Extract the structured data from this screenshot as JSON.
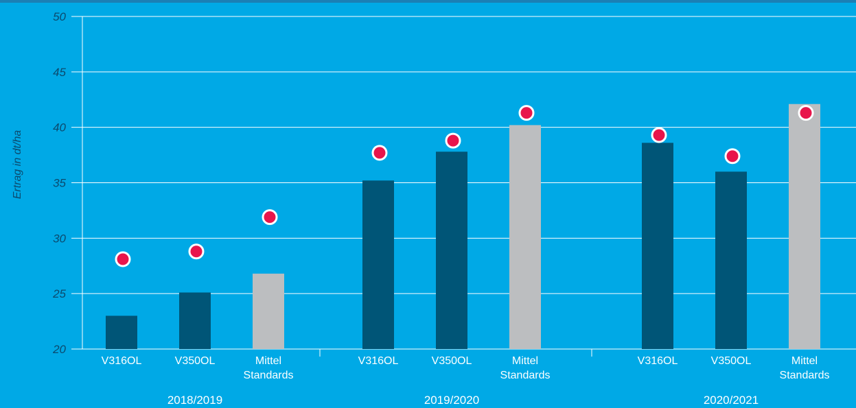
{
  "colors": {
    "background": "#00a9e6",
    "top_strip": "#1b7fb5",
    "bar_variety": "#005577",
    "bar_standard": "#bcbec0",
    "marker_fill": "#e8154b",
    "marker_stroke": "#ffffff",
    "grid": "#ffffff",
    "axis_text": "#0b4a6e",
    "category_text": "#ffffff"
  },
  "chart_data": {
    "type": "bar",
    "ylabel": "Ertrag in dt/ha",
    "ylim": [
      20,
      50
    ],
    "yticks": [
      "20",
      "25",
      "30",
      "35",
      "40",
      "45",
      "50"
    ],
    "grid": true,
    "groups": [
      {
        "label": "2018/2019",
        "bars": [
          {
            "category": [
              "V316OL"
            ],
            "value": 23.0,
            "marker": 28.1,
            "kind": "variety"
          },
          {
            "category": [
              "V350OL"
            ],
            "value": 25.1,
            "marker": 28.8,
            "kind": "variety"
          },
          {
            "category": [
              "Mittel",
              "Standards"
            ],
            "value": 26.8,
            "marker": 31.9,
            "kind": "standard"
          }
        ]
      },
      {
        "label": "2019/2020",
        "bars": [
          {
            "category": [
              "V316OL"
            ],
            "value": 35.2,
            "marker": 37.7,
            "kind": "variety"
          },
          {
            "category": [
              "V350OL"
            ],
            "value": 37.8,
            "marker": 38.8,
            "kind": "variety"
          },
          {
            "category": [
              "Mittel",
              "Standards"
            ],
            "value": 40.2,
            "marker": 41.3,
            "kind": "standard"
          }
        ]
      },
      {
        "label": "2020/2021",
        "bars": [
          {
            "category": [
              "V316OL"
            ],
            "value": 38.6,
            "marker": 39.3,
            "kind": "variety"
          },
          {
            "category": [
              "V350OL"
            ],
            "value": 36.0,
            "marker": 37.4,
            "kind": "variety"
          },
          {
            "category": [
              "Mittel",
              "Standards"
            ],
            "value": 42.1,
            "marker": 41.3,
            "kind": "standard"
          }
        ]
      }
    ]
  }
}
